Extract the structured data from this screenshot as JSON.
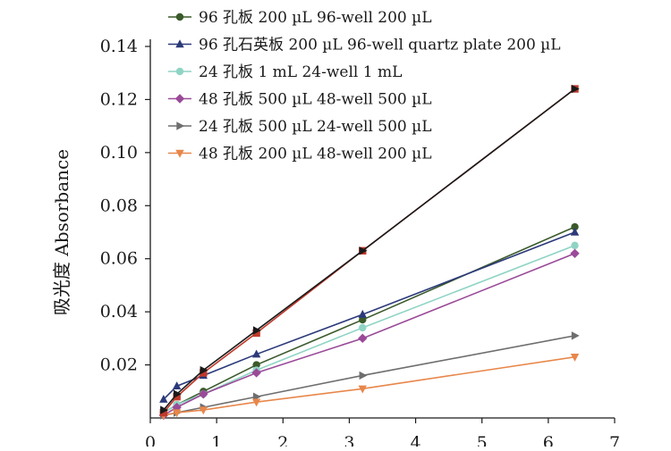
{
  "chart_data": {
    "type": "line",
    "title": "",
    "xlabel": "",
    "ylabel": "吸光度 Absorbance",
    "xlim": [
      0,
      7
    ],
    "ylim": [
      0,
      0.14
    ],
    "x_ticks": [
      "0",
      "1",
      "2",
      "3",
      "4",
      "5",
      "6",
      "7"
    ],
    "y_ticks": [
      "0.02",
      "0.04",
      "0.06",
      "0.08",
      "0.10",
      "0.12",
      "0.14"
    ],
    "x_tick_values": [
      0,
      1,
      2,
      3,
      4,
      5,
      6,
      7
    ],
    "y_tick_values": [
      0.02,
      0.04,
      0.06,
      0.08,
      0.1,
      0.12,
      0.14
    ],
    "grid": false,
    "legend_position": "top",
    "x": [
      0.2,
      0.4,
      0.8,
      1.6,
      3.2,
      6.4
    ],
    "series": [
      {
        "name": "96 孔板 200 µL 96-well 200 µL",
        "marker": "circle",
        "color": "#3a5a2a",
        "values": [
          0.002,
          0.005,
          0.01,
          0.02,
          0.037,
          0.072
        ]
      },
      {
        "name": "96 孔石英板 200 µL 96-well quartz plate 200 µL",
        "marker": "triangle-up",
        "color": "#2c3a7a",
        "values": [
          0.007,
          0.012,
          0.016,
          0.024,
          0.039,
          0.07
        ]
      },
      {
        "name": "24 孔板 1 mL 24-well 1 mL",
        "marker": "circle",
        "color": "#8fd4c4",
        "values": [
          0.002,
          0.005,
          0.009,
          0.018,
          0.034,
          0.065
        ]
      },
      {
        "name": "48 孔板 500 µL 48-well 500 µL",
        "marker": "diamond",
        "color": "#9a4a98",
        "values": [
          0.001,
          0.004,
          0.009,
          0.017,
          0.03,
          0.062
        ]
      },
      {
        "name": "24 孔板 500 µL 24-well 500 µL",
        "marker": "triangle-right",
        "color": "#6e6e6e",
        "values": [
          0.001,
          0.002,
          0.004,
          0.008,
          0.016,
          0.031
        ]
      },
      {
        "name": "48 孔板 200 µL 48-well 200 µL",
        "marker": "triangle-down",
        "color": "#e8864a",
        "values": [
          0.001,
          0.002,
          0.003,
          0.006,
          0.011,
          0.023
        ]
      },
      {
        "name": "",
        "marker": "square",
        "color": "#c0392b",
        "values": [
          0.002,
          0.008,
          0.017,
          0.032,
          0.063,
          0.124
        ]
      },
      {
        "name": "",
        "marker": "triangle-right",
        "color": "#1a1a1a",
        "values": [
          0.003,
          0.009,
          0.018,
          0.033,
          0.063,
          0.124
        ]
      }
    ]
  }
}
